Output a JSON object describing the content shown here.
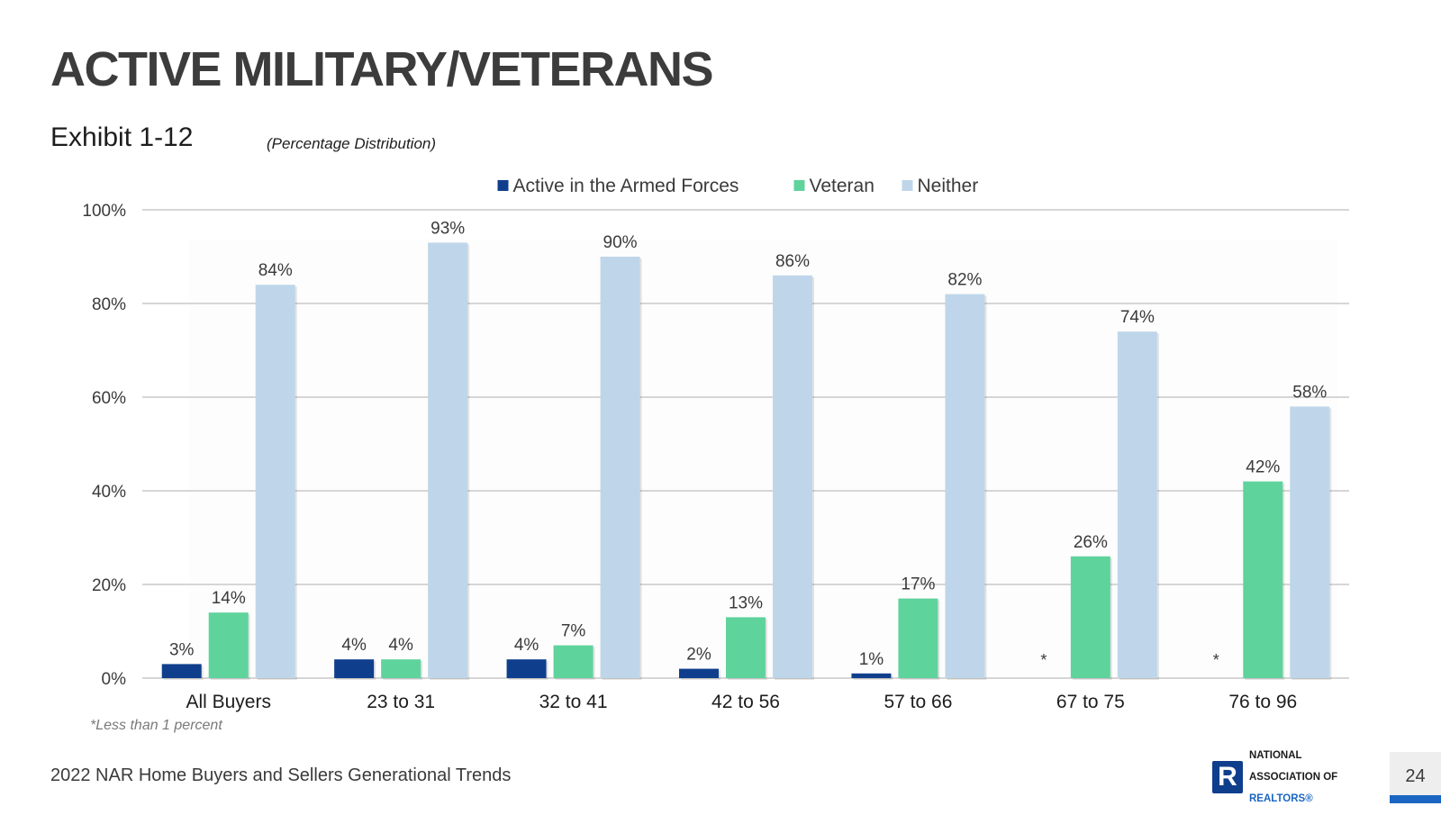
{
  "page": {
    "title": "ACTIVE MILITARY/VETERANS",
    "exhibit": "Exhibit 1-12",
    "subtitle": "(Percentage Distribution)",
    "footnote": "*Less than 1 percent",
    "footer": "2022 NAR Home Buyers and Sellers Generational Trends",
    "page_number": "24",
    "logo": {
      "line1": "NATIONAL",
      "line2": "ASSOCIATION OF",
      "line3": "REALTORS®",
      "mark": "R"
    }
  },
  "colors": {
    "active": "#0f3f8c",
    "veteran": "#5fd39c",
    "neither": "#bfd6ea",
    "grid": "#d6d6d6",
    "text": "#3a3a3a"
  },
  "chart_data": {
    "type": "bar",
    "categories": [
      "All Buyers",
      "23 to 31",
      "32 to 41",
      "42 to 56",
      "57 to 66",
      "67 to 75",
      "76 to 96"
    ],
    "series": [
      {
        "name": "Active in the Armed Forces",
        "values": [
          3,
          4,
          4,
          2,
          1,
          0,
          0
        ],
        "labels": [
          "3%",
          "4%",
          "4%",
          "2%",
          "1%",
          "*",
          "*"
        ]
      },
      {
        "name": "Veteran",
        "values": [
          14,
          4,
          7,
          13,
          17,
          26,
          42
        ],
        "labels": [
          "14%",
          "4%",
          "7%",
          "13%",
          "17%",
          "26%",
          "42%"
        ]
      },
      {
        "name": "Neither",
        "values": [
          84,
          93,
          90,
          86,
          82,
          74,
          58
        ],
        "labels": [
          "84%",
          "93%",
          "90%",
          "86%",
          "82%",
          "74%",
          "58%"
        ]
      }
    ],
    "ylim": [
      0,
      100
    ],
    "yticks": [
      0,
      20,
      40,
      60,
      80,
      100
    ],
    "ytick_labels": [
      "0%",
      "20%",
      "40%",
      "60%",
      "80%",
      "100%"
    ],
    "legend_position": "top-center",
    "grid": true
  }
}
